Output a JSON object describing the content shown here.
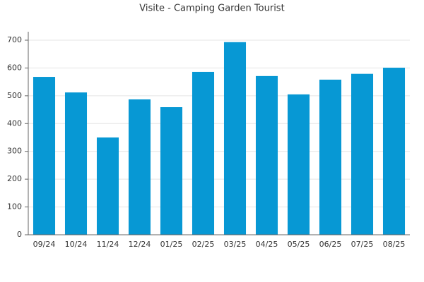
{
  "chart_data": {
    "type": "bar",
    "title": "Visite - Camping Garden Tourist",
    "categories": [
      "09/24",
      "10/24",
      "11/24",
      "12/24",
      "01/25",
      "02/25",
      "03/25",
      "04/25",
      "05/25",
      "06/25",
      "07/25",
      "08/25"
    ],
    "values": [
      568,
      512,
      350,
      487,
      459,
      586,
      693,
      571,
      505,
      558,
      579,
      601
    ],
    "color": "#0798d4",
    "ylim": [
      0,
      700
    ],
    "yticks": [
      0,
      100,
      200,
      300,
      400,
      500,
      600,
      700
    ],
    "grid": true
  }
}
